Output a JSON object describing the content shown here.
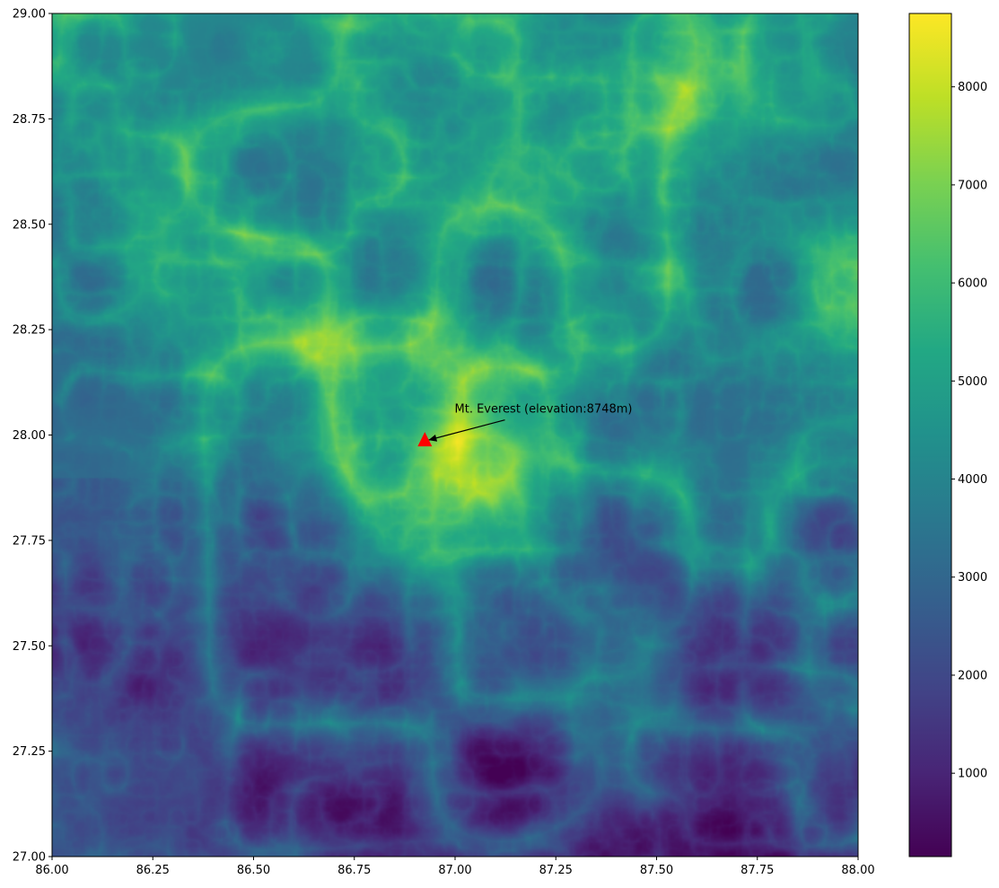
{
  "chart_data": {
    "type": "heatmap",
    "title": "",
    "xlabel": "",
    "ylabel": "",
    "xlim": [
      86.0,
      88.0
    ],
    "ylim": [
      27.0,
      29.0
    ],
    "x_ticks": [
      "86.00",
      "86.25",
      "86.50",
      "86.75",
      "87.00",
      "87.25",
      "87.50",
      "87.75",
      "88.00"
    ],
    "y_ticks": [
      "27.00",
      "27.25",
      "27.50",
      "27.75",
      "28.00",
      "28.25",
      "28.50",
      "28.75",
      "29.00"
    ],
    "colormap": "viridis",
    "colorbar": {
      "range": [
        150,
        8748
      ],
      "ticks": [
        "1000",
        "2000",
        "3000",
        "4000",
        "5000",
        "6000",
        "7000",
        "8000"
      ]
    },
    "grid": false,
    "marker": {
      "shape": "triangle",
      "color": "#ff0000",
      "lon": 86.925,
      "lat": 27.988
    },
    "annotation": {
      "text": "Mt. Everest (elevation:8748m)",
      "lon": 86.99,
      "lat": 28.04
    }
  }
}
